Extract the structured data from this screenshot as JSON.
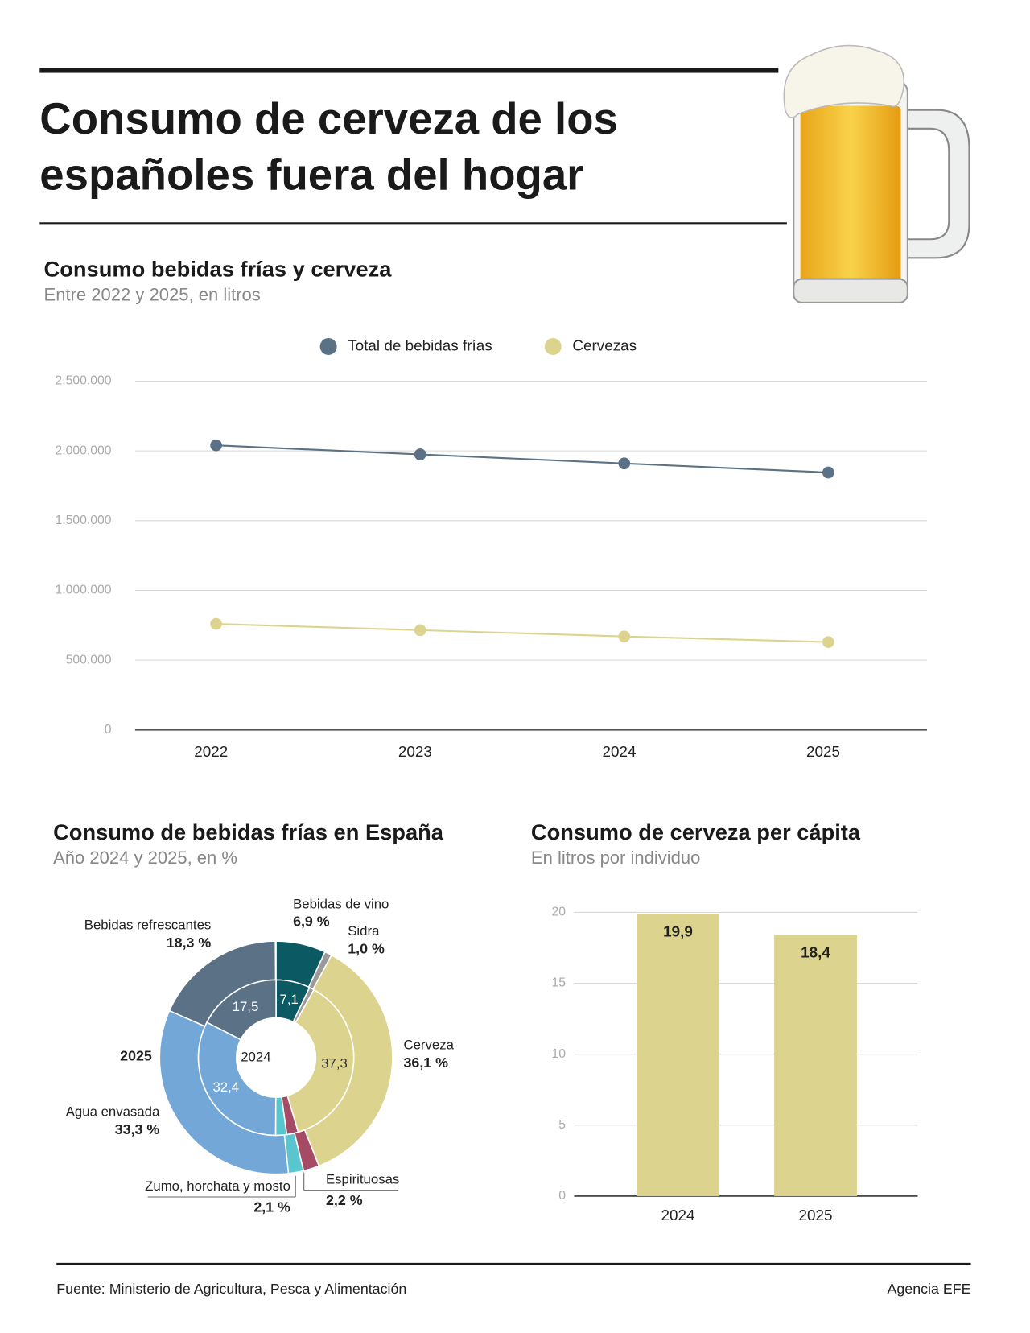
{
  "header": {
    "title": "Consumo de cerveza de los españoles fuera del hogar"
  },
  "chart_data": [
    {
      "type": "line",
      "title": "Consumo bebidas frías y cerveza",
      "subtitle": "Entre 2022 y 2025, en litros",
      "categories": [
        "2022",
        "2023",
        "2024",
        "2025"
      ],
      "series": [
        {
          "name": "Total de bebidas frías",
          "color": "#5b7186",
          "values": [
            2040000,
            1975000,
            1910000,
            1845000
          ]
        },
        {
          "name": "Cervezas",
          "color": "#dcd48e",
          "values": [
            760000,
            715000,
            670000,
            630000
          ]
        }
      ],
      "ylim": [
        0,
        2500000
      ],
      "yticks": [
        0,
        {
          "value": 500000,
          "label": "500.000"
        },
        {
          "value": 1000000,
          "label": "1.000.000"
        },
        {
          "value": 1500000,
          "label": "1.500.000"
        },
        {
          "value": 2000000,
          "label": "2.000.000"
        },
        {
          "value": 2500000,
          "label": "2.500.000"
        }
      ],
      "grid": true,
      "legend": "top"
    },
    {
      "type": "donut",
      "title": "Consumo de bebidas frías en España",
      "subtitle": "Año 2024 y 2025, en %",
      "categories": [
        "Bebidas de vino",
        "Sidra",
        "Cerveza",
        "Espirituosas",
        "Zumo, horchata y mosto",
        "Agua envasada",
        "Bebidas refrescantes"
      ],
      "colors": [
        "#0b5a63",
        "#9a9a9a",
        "#dcd48e",
        "#a64b66",
        "#5bc5cf",
        "#72a7d8",
        "#5b7186"
      ],
      "series": [
        {
          "name": "2025",
          "values": [
            6.9,
            1.0,
            36.1,
            2.2,
            2.1,
            33.3,
            18.3
          ],
          "value_labels": [
            "6,9 %",
            "1,0 %",
            "36,1 %",
            "2,2 %",
            "2,1 %",
            "33,3 %",
            "18,3 %"
          ]
        },
        {
          "name": "2024",
          "values": [
            7.1,
            1.0,
            37.3,
            2.4,
            2.3,
            32.4,
            17.5
          ],
          "value_labels": [
            "7,1",
            null,
            "37,3",
            null,
            null,
            "32,4",
            "17,5"
          ]
        }
      ]
    },
    {
      "type": "bar",
      "title": "Consumo de cerveza per cápita",
      "subtitle": "En litros por individuo",
      "categories": [
        "2024",
        "2025"
      ],
      "values": [
        19.9,
        18.4
      ],
      "value_labels": [
        "19,9",
        "18,4"
      ],
      "color": "#dcd48e",
      "ylim": [
        0,
        20
      ],
      "yticks": [
        0,
        5,
        10,
        15,
        20
      ],
      "grid": true
    }
  ],
  "footer": {
    "source": "Fuente: Ministerio de Agricultura, Pesca y Alimentación",
    "credit": "Agencia EFE"
  }
}
